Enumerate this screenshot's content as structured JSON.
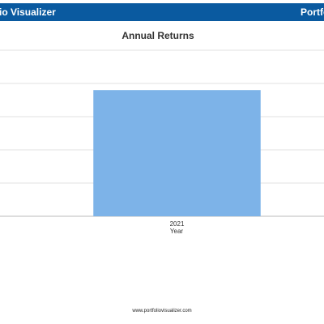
{
  "header": {
    "left_text": "io Visualizer",
    "right_text": "Portfo",
    "background": "#0a5aa0"
  },
  "chart_data": {
    "type": "bar",
    "title": "Annual Returns",
    "xlabel": "Year",
    "ylabel": "",
    "categories": [
      "2021"
    ],
    "values": [
      19
    ],
    "ylim": [
      0,
      25
    ],
    "grid": true,
    "bar_color": "#7db3e8"
  },
  "footer": {
    "text": "www.portfoliovisualizer.com"
  }
}
